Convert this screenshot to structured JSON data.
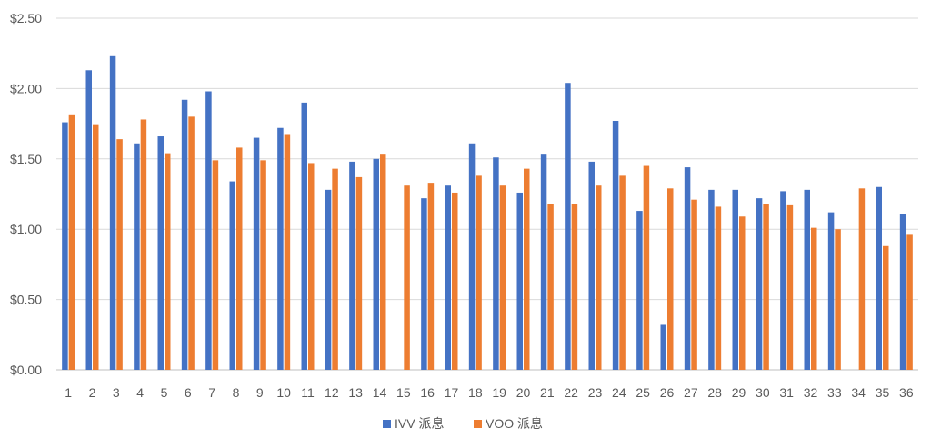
{
  "chart_data": {
    "type": "bar",
    "title": "",
    "xlabel": "",
    "ylabel": "",
    "categories": [
      "1",
      "2",
      "3",
      "4",
      "5",
      "6",
      "7",
      "8",
      "9",
      "10",
      "11",
      "12",
      "13",
      "14",
      "15",
      "16",
      "17",
      "18",
      "19",
      "20",
      "21",
      "22",
      "23",
      "24",
      "25",
      "26",
      "27",
      "28",
      "29",
      "30",
      "31",
      "32",
      "33",
      "34",
      "35",
      "36"
    ],
    "y_ticks": [
      "$0.00",
      "$0.50",
      "$1.00",
      "$1.50",
      "$2.00",
      "$2.50"
    ],
    "ylim": [
      0,
      2.5
    ],
    "grid": true,
    "legend_position": "bottom",
    "series": [
      {
        "name": "IVV 派息",
        "color": "#4472C4",
        "values": [
          1.76,
          2.13,
          2.23,
          1.61,
          1.66,
          1.92,
          1.98,
          1.34,
          1.65,
          1.72,
          1.9,
          1.28,
          1.48,
          1.5,
          0,
          1.22,
          1.31,
          1.61,
          1.51,
          1.26,
          1.53,
          2.04,
          1.48,
          1.77,
          1.13,
          0.32,
          1.44,
          1.28,
          1.28,
          1.22,
          1.27,
          1.28,
          1.12,
          0,
          1.3,
          1.11
        ]
      },
      {
        "name": "VOO 派息",
        "color": "#ED7D31",
        "values": [
          1.81,
          1.74,
          1.64,
          1.78,
          1.54,
          1.8,
          1.49,
          1.58,
          1.49,
          1.67,
          1.47,
          1.43,
          1.37,
          1.53,
          1.31,
          1.33,
          1.26,
          1.38,
          1.31,
          1.43,
          1.18,
          1.18,
          1.31,
          1.38,
          1.45,
          1.29,
          1.21,
          1.16,
          1.09,
          1.18,
          1.17,
          1.01,
          1.0,
          1.29,
          0.88,
          0.96
        ]
      }
    ]
  }
}
